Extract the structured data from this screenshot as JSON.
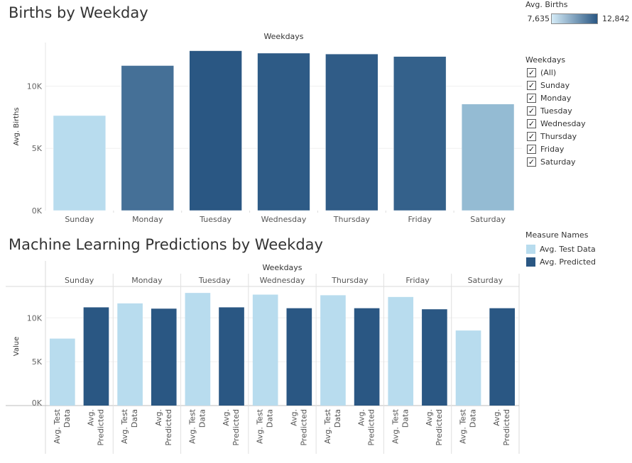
{
  "titles": {
    "births": "Births by Weekday",
    "ml": "Machine Learning Predictions by Weekday"
  },
  "colors": {
    "light": "#b8dcee",
    "dark": "#2a5783",
    "gradient_start": "#d4ebf7",
    "gradient_end": "#2a5783"
  },
  "color_legend": {
    "title": "Avg. Births",
    "min": "7,635",
    "max": "12,842"
  },
  "filter": {
    "title": "Weekdays",
    "items": [
      {
        "label": "(All)",
        "checked": true
      },
      {
        "label": "Sunday",
        "checked": true
      },
      {
        "label": "Monday",
        "checked": true
      },
      {
        "label": "Tuesday",
        "checked": true
      },
      {
        "label": "Wednesday",
        "checked": true
      },
      {
        "label": "Thursday",
        "checked": true
      },
      {
        "label": "Friday",
        "checked": true
      },
      {
        "label": "Saturday",
        "checked": true
      }
    ]
  },
  "measure_legend": {
    "title": "Measure Names",
    "items": [
      {
        "label": "Avg. Test Data",
        "color": "#b8dcee"
      },
      {
        "label": "Avg. Predicted",
        "color": "#2a5783"
      }
    ]
  },
  "chart_data": [
    {
      "type": "bar",
      "title": "Births by Weekday",
      "xlabel": "Weekdays",
      "ylabel": "Avg. Births",
      "categories": [
        "Sunday",
        "Monday",
        "Tuesday",
        "Wednesday",
        "Thursday",
        "Friday",
        "Saturday"
      ],
      "values": [
        7635,
        11650,
        12842,
        12650,
        12580,
        12380,
        8560
      ],
      "ylim": [
        0,
        13500
      ],
      "yticks": [
        0,
        5000,
        10000
      ],
      "ytick_labels": [
        "0K",
        "5K",
        "10K"
      ],
      "color_encoding": "Avg. Births",
      "grid": true
    },
    {
      "type": "bar",
      "title": "Machine Learning Predictions by Weekday",
      "xlabel": "Weekdays",
      "ylabel": "Value",
      "categories": [
        "Sunday",
        "Monday",
        "Tuesday",
        "Wednesday",
        "Thursday",
        "Friday",
        "Saturday"
      ],
      "subcategories": [
        "Avg. Test Data",
        "Avg. Predicted"
      ],
      "series": [
        {
          "name": "Avg. Test Data",
          "values": [
            7635,
            11650,
            12842,
            12650,
            12580,
            12380,
            8560
          ]
        },
        {
          "name": "Avg. Predicted",
          "values": [
            11200,
            11050,
            11200,
            11100,
            11100,
            10980,
            11100
          ]
        }
      ],
      "ylim": [
        0,
        13500
      ],
      "yticks": [
        0,
        5000,
        10000
      ],
      "ytick_labels": [
        "0K",
        "5K",
        "10K"
      ],
      "grid": true
    }
  ]
}
